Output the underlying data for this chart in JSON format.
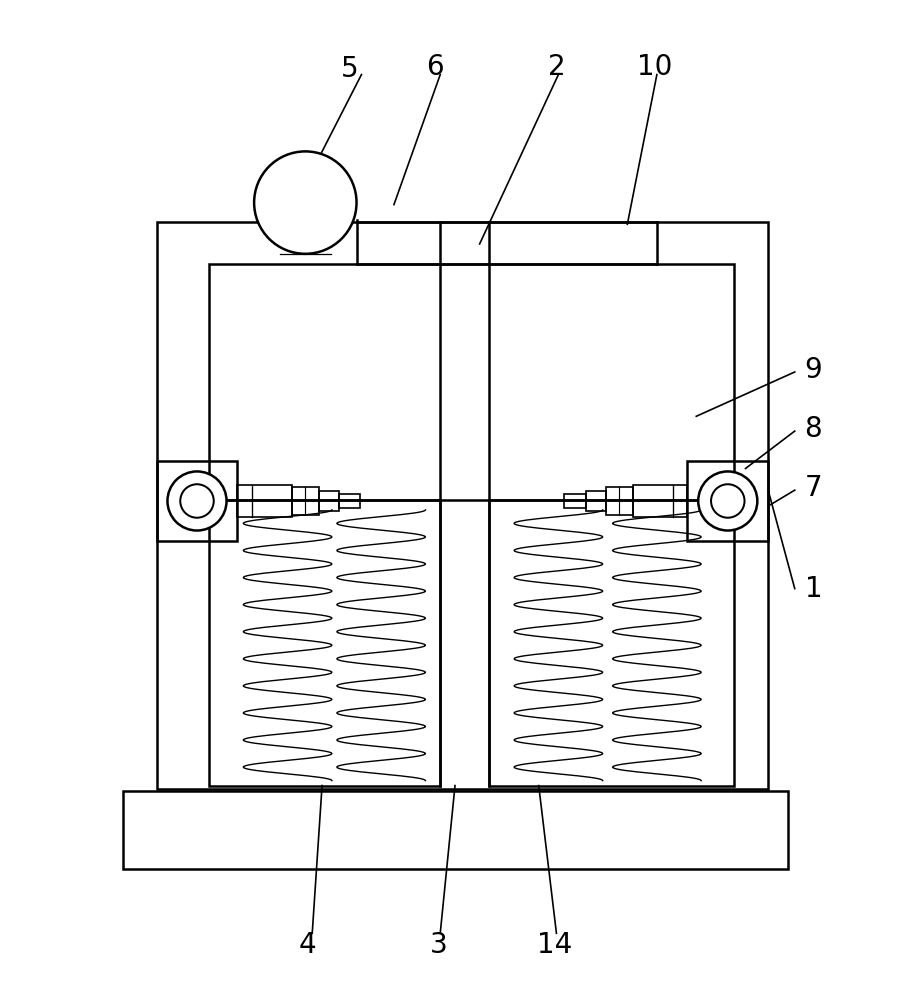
{
  "bg_color": "#ffffff",
  "line_color": "#000000",
  "lw_main": 1.8,
  "lw_detail": 1.2,
  "lw_spring": 1.0,
  "fig_width": 9.11,
  "fig_height": 10.0,
  "label_fs": 20,
  "leader_lw": 1.2
}
